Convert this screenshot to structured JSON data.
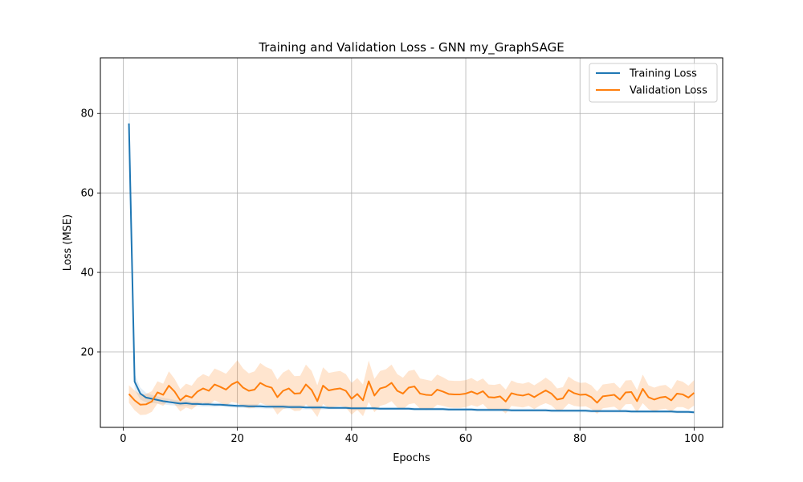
{
  "chart_data": {
    "type": "line",
    "title": "Training and Validation Loss - GNN my_GraphSAGE",
    "xlabel": "Epochs",
    "ylabel": "Loss (MSE)",
    "xlim": [
      -4,
      105
    ],
    "ylim": [
      1,
      94
    ],
    "xticks": [
      0,
      20,
      40,
      60,
      80,
      100
    ],
    "yticks": [
      20,
      40,
      60,
      80
    ],
    "grid": true,
    "legend_position": "top-right",
    "x": [
      1,
      2,
      3,
      4,
      5,
      6,
      7,
      8,
      9,
      10,
      11,
      12,
      13,
      14,
      15,
      16,
      17,
      18,
      19,
      20,
      21,
      22,
      23,
      24,
      25,
      26,
      27,
      28,
      29,
      30,
      31,
      32,
      33,
      34,
      35,
      36,
      37,
      38,
      39,
      40,
      41,
      42,
      43,
      44,
      45,
      46,
      47,
      48,
      49,
      50,
      51,
      52,
      53,
      54,
      55,
      56,
      57,
      58,
      59,
      60,
      61,
      62,
      63,
      64,
      65,
      66,
      67,
      68,
      69,
      70,
      71,
      72,
      73,
      74,
      75,
      76,
      77,
      78,
      79,
      80,
      81,
      82,
      83,
      84,
      85,
      86,
      87,
      88,
      89,
      90,
      91,
      92,
      93,
      94,
      95,
      96,
      97,
      98,
      99,
      100
    ],
    "series": [
      {
        "name": "Training Loss",
        "color": "#1f77b4",
        "values": [
          77.5,
          12.5,
          9.5,
          8.5,
          8.2,
          7.9,
          7.6,
          7.4,
          7.2,
          7.0,
          7.1,
          6.9,
          6.9,
          6.8,
          6.8,
          6.7,
          6.7,
          6.6,
          6.5,
          6.4,
          6.4,
          6.3,
          6.3,
          6.3,
          6.2,
          6.2,
          6.2,
          6.2,
          6.1,
          6.1,
          6.1,
          6.0,
          6.0,
          6.0,
          6.0,
          5.9,
          5.9,
          5.9,
          5.9,
          5.8,
          5.8,
          5.8,
          5.8,
          5.8,
          5.7,
          5.7,
          5.7,
          5.7,
          5.7,
          5.7,
          5.6,
          5.6,
          5.6,
          5.6,
          5.6,
          5.6,
          5.5,
          5.5,
          5.5,
          5.5,
          5.5,
          5.4,
          5.4,
          5.4,
          5.4,
          5.4,
          5.4,
          5.3,
          5.3,
          5.3,
          5.3,
          5.3,
          5.3,
          5.3,
          5.2,
          5.2,
          5.2,
          5.2,
          5.2,
          5.2,
          5.2,
          5.1,
          5.1,
          5.1,
          5.1,
          5.1,
          5.1,
          5.1,
          5.0,
          5.0,
          5.0,
          5.0,
          5.0,
          5.0,
          5.0,
          5.0,
          4.9,
          4.9,
          4.9,
          4.8
        ],
        "band_halfwidth": [
          12,
          2,
          1.5,
          1.2,
          1.0,
          0.9,
          0.8,
          0.8,
          0.7,
          0.7,
          0.7,
          0.6,
          0.6,
          0.6,
          0.6,
          0.6,
          0.5,
          0.5,
          0.5,
          0.5,
          0.5,
          0.5,
          0.5,
          0.5,
          0.5,
          0.5,
          0.5,
          0.5,
          0.5,
          0.5,
          0.5,
          0.5,
          0.5,
          0.5,
          0.5,
          0.4,
          0.4,
          0.4,
          0.4,
          0.4,
          0.4,
          0.4,
          0.4,
          0.4,
          0.4,
          0.4,
          0.4,
          0.4,
          0.4,
          0.4,
          0.4,
          0.4,
          0.4,
          0.4,
          0.4,
          0.4,
          0.4,
          0.4,
          0.4,
          0.4,
          0.4,
          0.4,
          0.4,
          0.4,
          0.4,
          0.4,
          0.4,
          0.4,
          0.4,
          0.4,
          0.4,
          0.4,
          0.4,
          0.4,
          0.4,
          0.4,
          0.4,
          0.4,
          0.4,
          0.4,
          0.4,
          0.4,
          0.4,
          0.4,
          0.4,
          0.4,
          0.4,
          0.4,
          0.4,
          0.4,
          0.4,
          0.4,
          0.4,
          0.4,
          0.4,
          0.4,
          0.4,
          0.4,
          0.4,
          0.4
        ]
      },
      {
        "name": "Validation Loss",
        "color": "#ff7f0e",
        "values": [
          9.4,
          7.8,
          6.7,
          6.8,
          7.5,
          9.8,
          9.2,
          11.5,
          10.0,
          7.8,
          9.0,
          8.5,
          10.0,
          10.8,
          10.2,
          11.8,
          11.2,
          10.5,
          11.8,
          12.5,
          11.0,
          10.2,
          10.5,
          12.2,
          11.4,
          11.0,
          8.6,
          10.2,
          10.8,
          9.5,
          9.6,
          11.8,
          10.4,
          7.6,
          11.5,
          10.3,
          10.6,
          10.8,
          10.2,
          8.2,
          9.4,
          7.8,
          12.6,
          9.0,
          10.8,
          11.2,
          12.2,
          10.2,
          9.5,
          11.0,
          11.3,
          9.5,
          9.2,
          9.1,
          10.5,
          10.0,
          9.4,
          9.3,
          9.3,
          9.5,
          10.0,
          9.4,
          10.1,
          8.6,
          8.5,
          8.8,
          7.5,
          9.6,
          9.2,
          9.0,
          9.4,
          8.6,
          9.5,
          10.3,
          9.5,
          8.0,
          8.3,
          10.4,
          9.6,
          9.2,
          9.3,
          8.6,
          7.2,
          8.8,
          9.0,
          9.2,
          8.0,
          9.8,
          9.9,
          7.6,
          10.7,
          8.6,
          8.0,
          8.5,
          8.7,
          7.8,
          9.5,
          9.3,
          8.5,
          9.7
        ],
        "band_halfwidth": [
          2.2,
          2.5,
          2.6,
          2.6,
          2.6,
          2.8,
          2.8,
          3.6,
          3.2,
          2.8,
          3.0,
          3.0,
          3.4,
          3.6,
          3.6,
          4.0,
          4.0,
          4.0,
          4.4,
          5.4,
          4.8,
          4.4,
          4.6,
          5.0,
          4.8,
          4.6,
          4.4,
          4.6,
          4.8,
          4.4,
          4.4,
          5.0,
          4.8,
          4.0,
          4.6,
          4.4,
          4.4,
          4.4,
          4.2,
          4.0,
          4.0,
          4.0,
          5.2,
          4.2,
          4.4,
          4.4,
          4.6,
          4.2,
          4.0,
          4.2,
          4.2,
          3.8,
          3.8,
          3.6,
          3.8,
          3.6,
          3.4,
          3.4,
          3.4,
          3.4,
          3.4,
          3.2,
          3.2,
          3.2,
          3.2,
          3.2,
          3.0,
          3.2,
          3.0,
          3.0,
          3.0,
          3.0,
          3.0,
          3.2,
          3.0,
          2.8,
          2.8,
          3.4,
          3.2,
          3.0,
          3.0,
          3.0,
          2.8,
          3.0,
          3.0,
          3.0,
          2.8,
          3.0,
          3.0,
          2.8,
          3.6,
          3.0,
          3.0,
          3.0,
          3.0,
          2.8,
          3.4,
          3.2,
          3.0,
          3.2
        ]
      }
    ]
  }
}
